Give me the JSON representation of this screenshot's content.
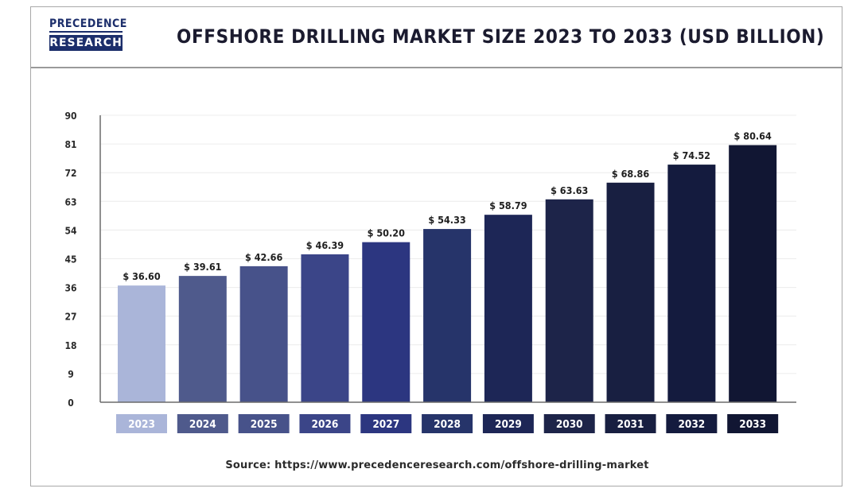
{
  "logo": {
    "line1": "PRECEDENCE",
    "line2": "RESEARCH"
  },
  "colors": {
    "bars": [
      "#aab5d9",
      "#4f5a8c",
      "#47528a",
      "#3b4588",
      "#2c3680",
      "#26346a",
      "#1d2656",
      "#1d2449",
      "#181f41",
      "#141b3e",
      "#111633"
    ]
  },
  "source_text": "Source: https://www.precedenceresearch.com/offshore-drilling-market",
  "chart_data": {
    "type": "bar",
    "title": "OFFSHORE DRILLING MARKET SIZE 2023 TO 2033 (USD BILLION)",
    "categories": [
      "2023",
      "2024",
      "2025",
      "2026",
      "2027",
      "2028",
      "2029",
      "2030",
      "2031",
      "2032",
      "2033"
    ],
    "values": [
      36.6,
      39.61,
      42.66,
      46.39,
      50.2,
      54.33,
      58.79,
      63.63,
      68.86,
      74.52,
      80.64
    ],
    "value_labels": [
      "$ 36.60",
      "$ 39.61",
      "$ 42.66",
      "$ 46.39",
      "$ 50.20",
      "$ 54.33",
      "$ 58.79",
      "$ 63.63",
      "$ 68.86",
      "$ 74.52",
      "$ 80.64"
    ],
    "y_ticks": [
      0,
      9,
      18,
      27,
      36,
      45,
      54,
      63,
      72,
      81,
      90
    ],
    "ylim": [
      0,
      90
    ],
    "xlabel": "",
    "ylabel": "",
    "grid": true,
    "legend": "none"
  }
}
